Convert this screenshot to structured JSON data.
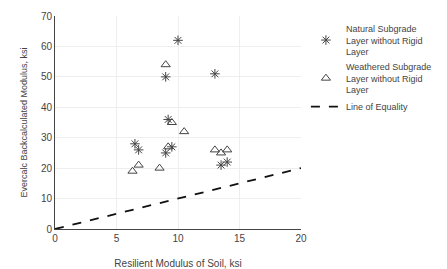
{
  "chart_data": {
    "type": "scatter",
    "xlabel": "Resilient Modulus of Soil, ksi",
    "ylabel": "Evercalc Backcalculated Modulus, ksi",
    "series": [
      {
        "name": "Natural Subgrade\nLayer without Rigid\nLayer",
        "type": "scatter",
        "marker": "asterisk",
        "color": "#444444",
        "x": [
          6.5,
          6.8,
          9.0,
          9.2,
          10.0,
          13.0,
          9.0,
          9.5,
          13.5,
          14.0
        ],
        "values": [
          28,
          26,
          50,
          36,
          62,
          51,
          25,
          27,
          21,
          22
        ]
      },
      {
        "name": "Weathered Subgrade\nLayer without Rigid\nLayer",
        "type": "scatter",
        "marker": "triangle-open",
        "color": "#444444",
        "x": [
          6.3,
          6.8,
          8.5,
          9.0,
          9.5,
          10.5,
          13.0,
          13.5,
          14.0,
          9.2
        ],
        "values": [
          19,
          21,
          20,
          54,
          35,
          32,
          26,
          25,
          26,
          27
        ]
      },
      {
        "name": "Line of Equality",
        "type": "line",
        "line_style": "dashed",
        "color": "#111111",
        "x": [
          0,
          20
        ],
        "values": [
          0,
          20
        ]
      }
    ],
    "xlim": [
      0,
      20
    ],
    "ylim": [
      0,
      70
    ],
    "xticks": [
      0,
      5,
      10,
      15,
      20
    ],
    "yticks": [
      0,
      10,
      20,
      30,
      40,
      50,
      60,
      70
    ],
    "grid": true,
    "legend": "right"
  }
}
